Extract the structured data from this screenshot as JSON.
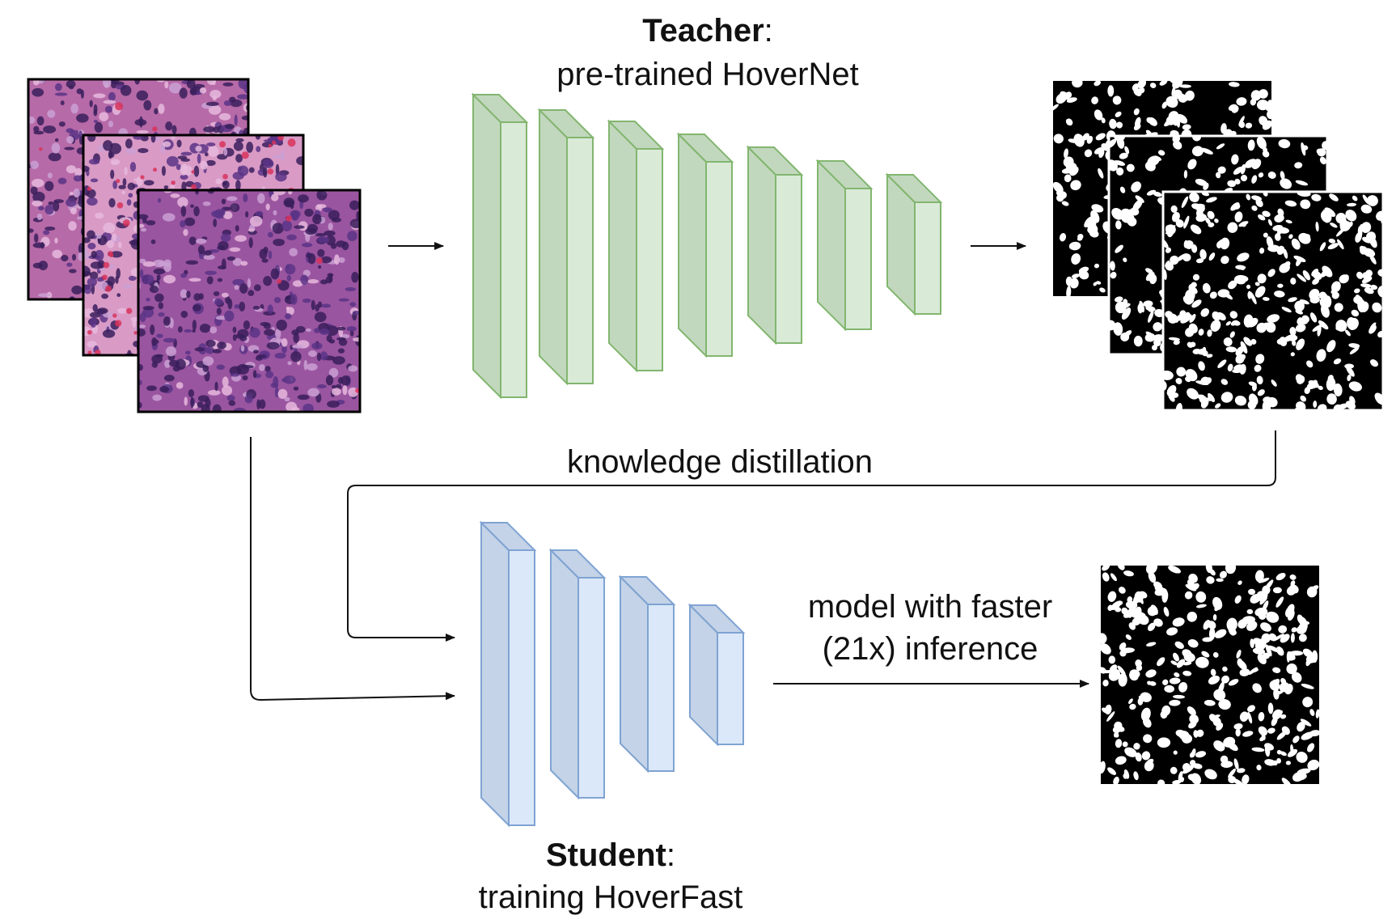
{
  "teacher": {
    "title": "Teacher",
    "title_suffix": ":",
    "subtitle": "pre-trained HoverNet",
    "color_front": "#d9ead7",
    "color_side": "#c2d8be",
    "color_stroke": "#82b66f"
  },
  "student": {
    "title": "Student",
    "title_suffix": ":",
    "subtitle": "training HoverFast",
    "color_front": "#dbe8f9",
    "color_side": "#c4d3e8",
    "color_stroke": "#7fa3d2"
  },
  "distillation_label": "knowledge distillation",
  "output": {
    "line1": "model with faster",
    "line2": "(21x) inference"
  },
  "images": {
    "histology_colors": [
      "#b76aa8",
      "#9a55a0",
      "#7c4795"
    ],
    "mask_fg": "#ffffff",
    "mask_bg": "#000000"
  }
}
